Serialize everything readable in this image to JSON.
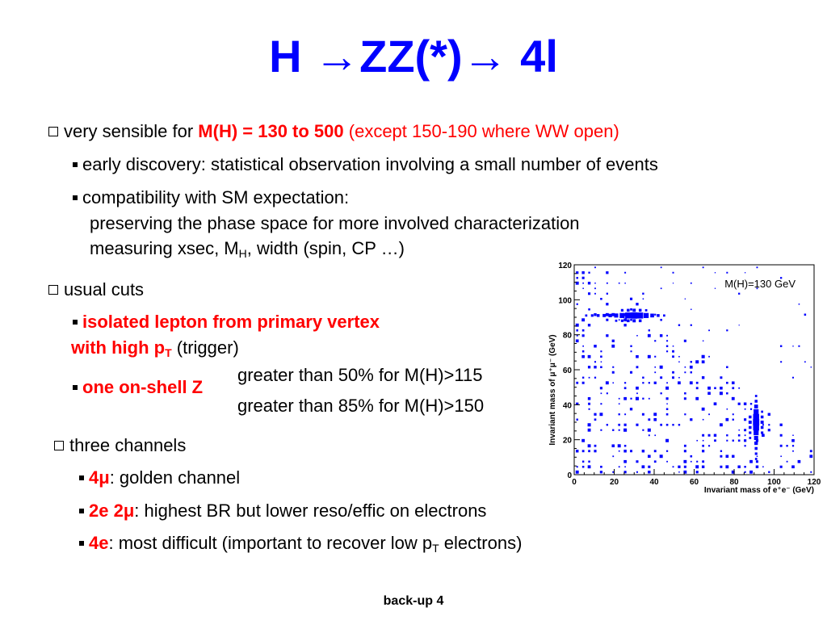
{
  "title": "H →ZZ(*)→ 4l",
  "footer": "back-up 4",
  "colors": {
    "title": "#0000ff",
    "highlight": "#ff0000",
    "scatter": "#0000ff"
  },
  "icons": {
    "section_bullet": "checkbox-bullet-icon",
    "item_bullet": "square-bullet-icon"
  },
  "section1": {
    "lead": "very sensible for ",
    "mass_range": "M(H) = 130 to 500",
    "exception": " (except 150-190 where WW open)",
    "item1": "early discovery:  statistical observation involving a small number of events",
    "item2": "compatibility with SM expectation:",
    "item2_line2": "preserving the phase space for more involved characterization",
    "item2_line3_a": "measuring xsec, M",
    "item2_line3_sub": "H",
    "item2_line3_b": ", width (spin, CP …)"
  },
  "section2": {
    "lead": "usual cuts",
    "item1_red_a": "isolated lepton from primary vertex",
    "item1_red_b": "with high p",
    "item1_red_sub": "T",
    "item1_tail": " (trigger)",
    "item2_red": "one on-shell Z",
    "note1": "greater than 50% for M(H)>115",
    "note2": "greater than 85% for M(H)>150"
  },
  "section3": {
    "lead": "three channels",
    "ch1_red": "4μ",
    "ch1_text": ": golden channel",
    "ch2_red": "2e 2μ",
    "ch2_text": ": highest BR but lower reso/effic on electrons",
    "ch3_red": "4e",
    "ch3_text_a": ": most difficult (important to recover low p",
    "ch3_sub": "T",
    "ch3_text_b": " electrons)"
  },
  "chart_data": {
    "type": "heatmap",
    "title": "",
    "annotation": "M(H)=130 GeV",
    "xlabel": "Invariant mass of e⁺e⁻ (GeV)",
    "ylabel": "Invariant mass of μ⁺μ⁻ (GeV)",
    "xlim": [
      0,
      120
    ],
    "ylim": [
      0,
      120
    ],
    "xticks": [
      "0",
      "20",
      "40",
      "60",
      "80",
      "100",
      "120"
    ],
    "yticks": [
      "0",
      "20",
      "40",
      "60",
      "80",
      "100",
      "120"
    ],
    "grid": false,
    "legend": "none",
    "bin_width": 3,
    "cells": [
      [
        30,
        91,
        1.0
      ],
      [
        27,
        91,
        0.95
      ],
      [
        33,
        91,
        0.95
      ],
      [
        24,
        91,
        0.8
      ],
      [
        36,
        91,
        0.8
      ],
      [
        21,
        91,
        0.65
      ],
      [
        18,
        91,
        0.55
      ],
      [
        39,
        91,
        0.6
      ],
      [
        15,
        91,
        0.5
      ],
      [
        12,
        91,
        0.45
      ],
      [
        9,
        91,
        0.4
      ],
      [
        6,
        91,
        0.35
      ],
      [
        42,
        91,
        0.45
      ],
      [
        45,
        91,
        0.35
      ],
      [
        30,
        94,
        0.5
      ],
      [
        27,
        94,
        0.45
      ],
      [
        33,
        94,
        0.45
      ],
      [
        24,
        94,
        0.4
      ],
      [
        36,
        94,
        0.35
      ],
      [
        30,
        88,
        0.5
      ],
      [
        27,
        88,
        0.45
      ],
      [
        33,
        88,
        0.45
      ],
      [
        24,
        88,
        0.4
      ],
      [
        21,
        88,
        0.35
      ],
      [
        91,
        30,
        1.0
      ],
      [
        91,
        27,
        0.95
      ],
      [
        91,
        33,
        0.95
      ],
      [
        91,
        24,
        0.8
      ],
      [
        91,
        36,
        0.8
      ],
      [
        91,
        21,
        0.65
      ],
      [
        91,
        18,
        0.55
      ],
      [
        91,
        39,
        0.6
      ],
      [
        91,
        15,
        0.45
      ],
      [
        91,
        42,
        0.45
      ],
      [
        91,
        12,
        0.4
      ],
      [
        91,
        9,
        0.35
      ],
      [
        91,
        45,
        0.35
      ],
      [
        94,
        30,
        0.5
      ],
      [
        94,
        27,
        0.45
      ],
      [
        94,
        33,
        0.45
      ],
      [
        94,
        24,
        0.4
      ],
      [
        94,
        36,
        0.35
      ],
      [
        88,
        30,
        0.5
      ],
      [
        88,
        27,
        0.45
      ],
      [
        88,
        33,
        0.45
      ],
      [
        88,
        24,
        0.4
      ],
      [
        88,
        21,
        0.35
      ]
    ],
    "background_density": 0.22
  }
}
